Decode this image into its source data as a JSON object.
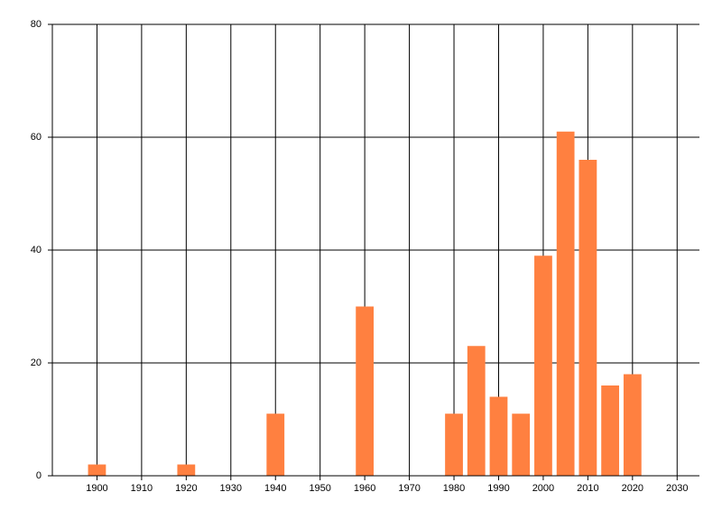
{
  "chart_data": {
    "type": "bar",
    "x": [
      1900,
      1920,
      1940,
      1960,
      1980,
      1985,
      1990,
      1995,
      2000,
      2005,
      2010,
      2015,
      2020
    ],
    "values": [
      2,
      2,
      11,
      30,
      11,
      23,
      14,
      11,
      39,
      61,
      56,
      16,
      18
    ],
    "color": "#ff8040",
    "xlim": [
      1890,
      2035
    ],
    "xticks": [
      1900,
      1910,
      1920,
      1930,
      1940,
      1950,
      1960,
      1970,
      1980,
      1990,
      2000,
      2010,
      2020,
      2030
    ],
    "ylim": [
      0,
      80
    ],
    "yticks": [
      0,
      20,
      40,
      60,
      80
    ],
    "grid": true
  }
}
